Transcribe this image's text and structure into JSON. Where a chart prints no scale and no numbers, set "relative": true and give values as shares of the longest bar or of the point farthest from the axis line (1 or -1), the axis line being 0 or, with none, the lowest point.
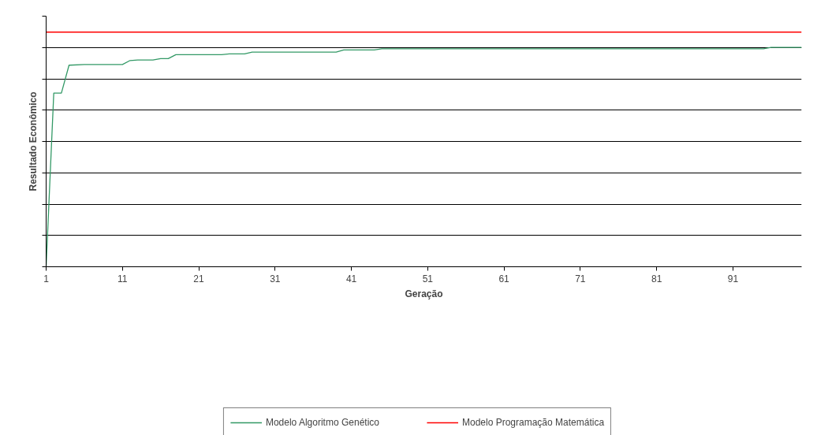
{
  "chart_data": {
    "type": "line",
    "relative": true,
    "xlabel": "Geração",
    "ylabel": "Resultado Econômico",
    "x": [
      1,
      2,
      3,
      4,
      6,
      11,
      12,
      13,
      15,
      16,
      17,
      18,
      24,
      25,
      27,
      28,
      39,
      40,
      44,
      45,
      95,
      96,
      100
    ],
    "xlim": [
      1,
      100
    ],
    "xticks": [
      1,
      11,
      21,
      31,
      41,
      51,
      61,
      71,
      81,
      91
    ],
    "series": [
      {
        "name": "Modelo Algoritmo Genético",
        "color": "#339966",
        "values": [
          0,
          0.74,
          0.74,
          0.859,
          0.862,
          0.862,
          0.879,
          0.881,
          0.881,
          0.887,
          0.887,
          0.904,
          0.904,
          0.907,
          0.907,
          0.915,
          0.915,
          0.924,
          0.924,
          0.929,
          0.929,
          0.935,
          0.935
        ]
      },
      {
        "name": "Modelo Programação Matemática",
        "color": "#ff0000",
        "x": [
          1,
          100
        ],
        "values": [
          1,
          1
        ]
      }
    ],
    "grid": "y",
    "legend": "bottom",
    "marker": "none",
    "line_style": "solid"
  }
}
